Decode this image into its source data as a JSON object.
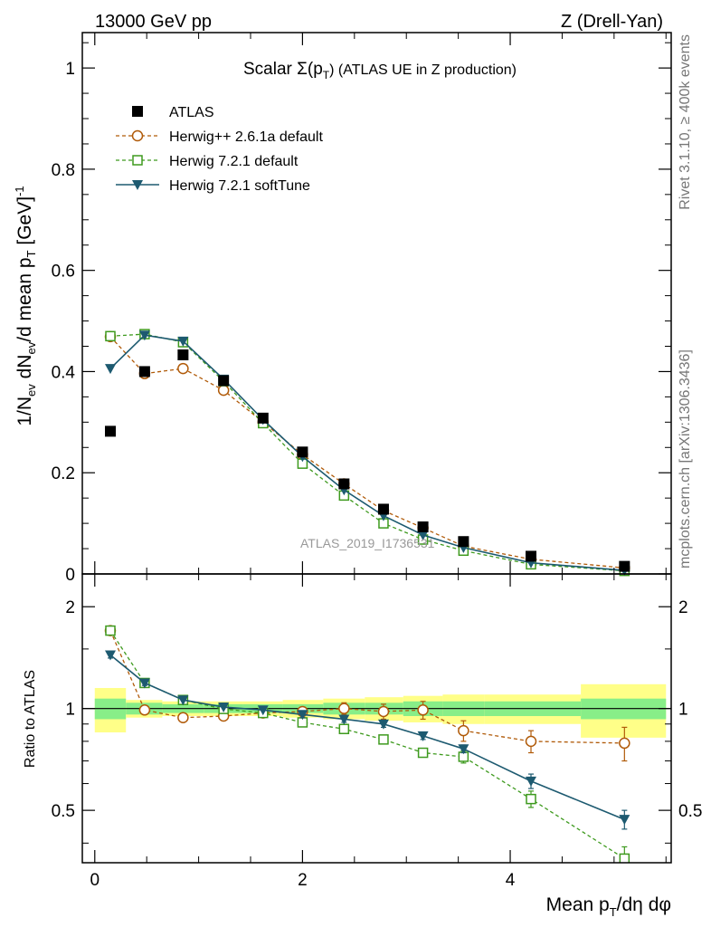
{
  "header": {
    "left": "13000 GeV pp",
    "right": "Z (Drell-Yan)"
  },
  "side_labels": {
    "top": "Rivet 3.1.10, ≥ 400k events",
    "bottom": "mcplots.cern.ch [arXiv:1306.3436]"
  },
  "watermark": "ATLAS_2019_I1736531",
  "colors": {
    "ATLAS": "#000000",
    "Herwig++ 2.6.1a default": "#b05a08",
    "Herwig 7.2.1 default": "#3e9a1e",
    "Herwig 7.2.1 softTune": "#1d5a70",
    "band_outer": "#ffff88",
    "band_inner": "#88ee88"
  },
  "chart_data": [
    {
      "type": "line",
      "panel": "main",
      "title": "Scalar Σ(pT) (ATLAS UE in Z production)",
      "title_parts": {
        "a": "Scalar Σ(p",
        "sub": "T",
        "b": ") (ATLAS UE in Z production)"
      },
      "xlabel": "Mean pT/dη dφ",
      "xlabel_parts": {
        "a": "Mean p",
        "sub": "T",
        "b": "/dη dφ"
      },
      "ylabel": "1/Nev dNev/d mean pT [GeV]^-1",
      "ylabel_parts": {
        "a": "1/N",
        "sub1": "ev",
        "b": " dN",
        "sub2": "ev",
        "c": "/d mean p",
        "sub3": "T",
        "d": " [GeV]",
        "sup": "-1"
      },
      "xlim": [
        -0.12,
        5.55
      ],
      "ylim": [
        0,
        1.07
      ],
      "xticks": [
        0,
        2,
        4
      ],
      "xtick_labels": [
        "0",
        "2",
        "4"
      ],
      "yticks": [
        0,
        0.2,
        0.4,
        0.6,
        0.8,
        1
      ],
      "ytick_labels": [
        "0",
        "0.2",
        "0.4",
        "0.6",
        "0.8",
        "1"
      ],
      "x": [
        0.15,
        0.48,
        0.85,
        1.24,
        1.62,
        2.0,
        2.4,
        2.78,
        3.16,
        3.55,
        4.2,
        5.1
      ],
      "legend": [
        "ATLAS",
        "Herwig++ 2.6.1a default",
        "Herwig 7.2.1 default",
        "Herwig 7.2.1 softTune"
      ],
      "series": [
        {
          "name": "ATLAS",
          "values": [
            0.282,
            0.4,
            0.433,
            0.382,
            0.308,
            0.241,
            0.178,
            0.128,
            0.093,
            0.064,
            0.035,
            0.015
          ]
        },
        {
          "name": "Herwig++ 2.6.1a default",
          "values": [
            0.469,
            0.396,
            0.406,
            0.363,
            0.3,
            0.236,
            0.178,
            0.125,
            0.091,
            0.055,
            0.029,
            0.012
          ]
        },
        {
          "name": "Herwig 7.2.1 default",
          "values": [
            0.47,
            0.474,
            0.458,
            0.381,
            0.298,
            0.218,
            0.155,
            0.1,
            0.068,
            0.046,
            0.019,
            0.006
          ]
        },
        {
          "name": "Herwig 7.2.1 softTune",
          "values": [
            0.406,
            0.472,
            0.46,
            0.385,
            0.305,
            0.232,
            0.166,
            0.115,
            0.077,
            0.052,
            0.022,
            0.007
          ]
        }
      ]
    },
    {
      "type": "line",
      "panel": "ratio",
      "ylabel": "Ratio to ATLAS",
      "ylim": [
        0.35,
        2.5
      ],
      "yticks": [
        0.5,
        1,
        2
      ],
      "ytick_labels": [
        "0.5",
        "1",
        "2"
      ],
      "x": [
        0.15,
        0.48,
        0.85,
        1.24,
        1.62,
        2.0,
        2.4,
        2.78,
        3.16,
        3.55,
        4.2,
        5.1
      ],
      "bin_edges": [
        0,
        0.3,
        0.65,
        1.05,
        1.43,
        1.81,
        2.2,
        2.6,
        2.97,
        3.35,
        3.75,
        4.68,
        5.5
      ],
      "band_inner": [
        0.07,
        0.04,
        0.03,
        0.03,
        0.03,
        0.03,
        0.04,
        0.04,
        0.05,
        0.05,
        0.05,
        0.07
      ],
      "band_outer": [
        0.15,
        0.06,
        0.05,
        0.05,
        0.05,
        0.06,
        0.07,
        0.08,
        0.09,
        0.1,
        0.1,
        0.18
      ],
      "series": [
        {
          "name": "Herwig++ 2.6.1a default",
          "values": [
            1.7,
            0.99,
            0.94,
            0.95,
            0.97,
            0.98,
            1.0,
            0.98,
            0.99,
            0.86,
            0.8,
            0.79
          ],
          "errors": [
            0.03,
            0.02,
            0.01,
            0.01,
            0.01,
            0.02,
            0.04,
            0.05,
            0.06,
            0.06,
            0.06,
            0.09
          ]
        },
        {
          "name": "Herwig 7.2.1 default",
          "values": [
            1.7,
            1.19,
            1.06,
            0.997,
            0.97,
            0.91,
            0.87,
            0.81,
            0.74,
            0.72,
            0.54,
            0.36
          ],
          "errors": [
            0.03,
            0.02,
            0.01,
            0.01,
            0.01,
            0.02,
            0.02,
            0.02,
            0.02,
            0.03,
            0.03,
            0.03
          ]
        },
        {
          "name": "Herwig 7.2.1 softTune",
          "values": [
            1.44,
            1.19,
            1.06,
            1.01,
            0.99,
            0.96,
            0.93,
            0.9,
            0.83,
            0.76,
            0.61,
            0.47
          ],
          "errors": [
            0.03,
            0.02,
            0.01,
            0.01,
            0.01,
            0.02,
            0.02,
            0.02,
            0.02,
            0.02,
            0.03,
            0.03
          ]
        }
      ]
    }
  ]
}
